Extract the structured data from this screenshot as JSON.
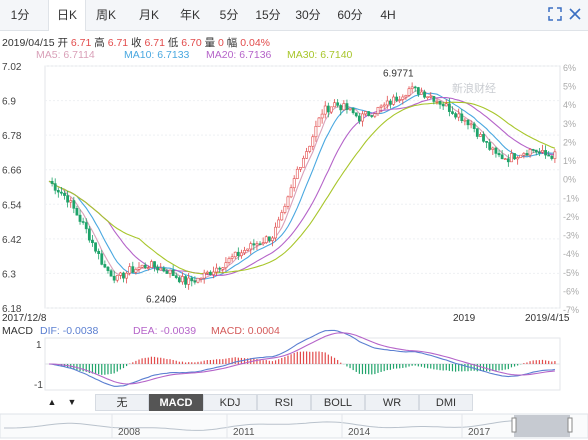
{
  "tabs": [
    "1分",
    "日K",
    "周K",
    "月K",
    "年K",
    "5分",
    "15分",
    "30分",
    "60分",
    "4H"
  ],
  "active_tab": 1,
  "quote": {
    "date": "2019/04/15",
    "open_label": "开",
    "open": "6.71",
    "high_label": "高",
    "high": "6.71",
    "close_label": "收",
    "close": "6.71",
    "low_label": "低",
    "low": "6.70",
    "vol_label": "量",
    "vol": "0",
    "chg_label": "幅",
    "chg": "0.04%"
  },
  "ma": {
    "ma5": "MA5: 6.7114",
    "ma10": "MA10: 6.7133",
    "ma20": "MA20: 6.7136",
    "ma30": "MA30: 6.7140"
  },
  "macd_info": {
    "name": "MACD",
    "dif": "DIF: -0.0038",
    "dea": "DEA: -0.0039",
    "macd": "MACD: 0.0004"
  },
  "watermark": "新浪财经",
  "bottom_tabs": [
    "无",
    "MACD",
    "KDJ",
    "RSI",
    "BOLL",
    "WR",
    "DMI"
  ],
  "active_bottom_tab": 1,
  "colors": {
    "up": "#e24b4b",
    "down": "#1fa36a",
    "ma5": "#d9a0b8",
    "ma10": "#4aa8e0",
    "ma20": "#b564c9",
    "ma30": "#a8c62b",
    "dif": "#5b7fd1",
    "dea": "#b564c9"
  },
  "icons": [
    "fullscreen-icon",
    "close-icon",
    "arrow-up-icon",
    "arrow-down-icon"
  ],
  "chart_data": {
    "type": "candlestick",
    "ylim": [
      6.18,
      7.02
    ],
    "left_ticks": [
      "7.02",
      "6.9",
      "6.78",
      "6.66",
      "6.54",
      "6.42",
      "6.3",
      "6.18"
    ],
    "right_ticks": [
      "6%",
      "5%",
      "4%",
      "3%",
      "2%",
      "1%",
      "0%",
      "-1%",
      "-2%",
      "-3%",
      "-4%",
      "-5%",
      "-6%",
      "-7%"
    ],
    "x_labels": [
      "2017/12/8",
      "2019",
      "2019/4/15"
    ],
    "annotations": [
      {
        "text": "6.9771",
        "value": 6.9771
      },
      {
        "text": "6.2409",
        "value": 6.2409
      }
    ],
    "close_anchors": [
      [
        0,
        6.62
      ],
      [
        6,
        6.56
      ],
      [
        12,
        6.45
      ],
      [
        18,
        6.32
      ],
      [
        22,
        6.28
      ],
      [
        26,
        6.31
      ],
      [
        32,
        6.33
      ],
      [
        38,
        6.31
      ],
      [
        44,
        6.27
      ],
      [
        48,
        6.28
      ],
      [
        54,
        6.32
      ],
      [
        60,
        6.36
      ],
      [
        66,
        6.4
      ],
      [
        72,
        6.43
      ],
      [
        76,
        6.52
      ],
      [
        80,
        6.66
      ],
      [
        84,
        6.75
      ],
      [
        88,
        6.86
      ],
      [
        92,
        6.89
      ],
      [
        96,
        6.87
      ],
      [
        100,
        6.84
      ],
      [
        104,
        6.86
      ],
      [
        108,
        6.88
      ],
      [
        112,
        6.91
      ],
      [
        116,
        6.94
      ],
      [
        120,
        6.93
      ],
      [
        124,
        6.91
      ],
      [
        128,
        6.88
      ],
      [
        132,
        6.85
      ],
      [
        136,
        6.82
      ],
      [
        140,
        6.76
      ],
      [
        144,
        6.71
      ],
      [
        148,
        6.7
      ],
      [
        152,
        6.72
      ],
      [
        156,
        6.73
      ],
      [
        160,
        6.71
      ],
      [
        163,
        6.71
      ]
    ],
    "macd_ylim": [
      -1.3,
      1.3
    ],
    "macd_ticks": [
      "1",
      "-1"
    ],
    "nav_years": [
      "2008",
      "2011",
      "2014",
      "2017"
    ]
  }
}
